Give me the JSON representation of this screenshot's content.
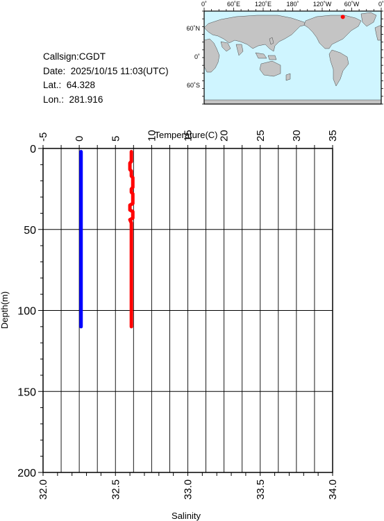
{
  "station": {
    "callsign": "Callsign:CGDT",
    "date": "Date:  2025/10/15 11:03(UTC)",
    "lat": "Lat.:  64.328",
    "lon": "Lon.:  281.916"
  },
  "map": {
    "top_labels": [
      "0˚",
      "60˚E",
      "120˚E",
      "180˚",
      "120˚W",
      "60˚W",
      "0˚"
    ],
    "left_labels": [
      "60˚N",
      "0˚",
      "60˚S"
    ],
    "ocean_color": "#cff5ff",
    "land_color": "#c4c4c4",
    "marker_color": "#ff0000",
    "marker_position": {
      "lat": 64.328,
      "lon": 281.916
    }
  },
  "chart_data": {
    "type": "line",
    "ylabel": "Depth(m)",
    "ylim": [
      0,
      200
    ],
    "y_ticks": [
      "0",
      "50",
      "100",
      "150",
      "200"
    ],
    "temperature_axis": {
      "label": "Temperature(C)",
      "position": "top",
      "range": [
        -5,
        35
      ],
      "ticks": [
        "-5",
        "0",
        "5",
        "10",
        "15",
        "20",
        "25",
        "30",
        "35"
      ]
    },
    "salinity_axis": {
      "label": "Salinity",
      "position": "bottom",
      "range": [
        32.0,
        34.0
      ],
      "ticks": [
        "32.0",
        "32.5",
        "33.0",
        "33.5",
        "34.0"
      ]
    },
    "grid": true,
    "series": [
      {
        "axis": "temperature",
        "color": "#0000ff",
        "points": [
          [
            0.25,
            2
          ],
          [
            0.25,
            10
          ],
          [
            0.25,
            20
          ],
          [
            0.25,
            40
          ],
          [
            0.25,
            60
          ],
          [
            0.25,
            80
          ],
          [
            0.25,
            100
          ],
          [
            0.25,
            110
          ]
        ]
      },
      {
        "axis": "salinity",
        "color": "#ff0000",
        "points": [
          [
            32.61,
            2
          ],
          [
            32.61,
            8
          ],
          [
            32.6,
            9
          ],
          [
            32.6,
            13
          ],
          [
            32.61,
            14
          ],
          [
            32.61,
            17
          ],
          [
            32.62,
            18
          ],
          [
            32.62,
            24
          ],
          [
            32.61,
            25
          ],
          [
            32.61,
            27
          ],
          [
            32.62,
            28
          ],
          [
            32.62,
            34
          ],
          [
            32.6,
            35
          ],
          [
            32.6,
            38
          ],
          [
            32.62,
            39
          ],
          [
            32.62,
            43
          ],
          [
            32.6,
            44
          ],
          [
            32.61,
            46
          ],
          [
            32.61,
            60
          ],
          [
            32.61,
            80
          ],
          [
            32.61,
            100
          ],
          [
            32.61,
            110
          ]
        ]
      }
    ]
  }
}
